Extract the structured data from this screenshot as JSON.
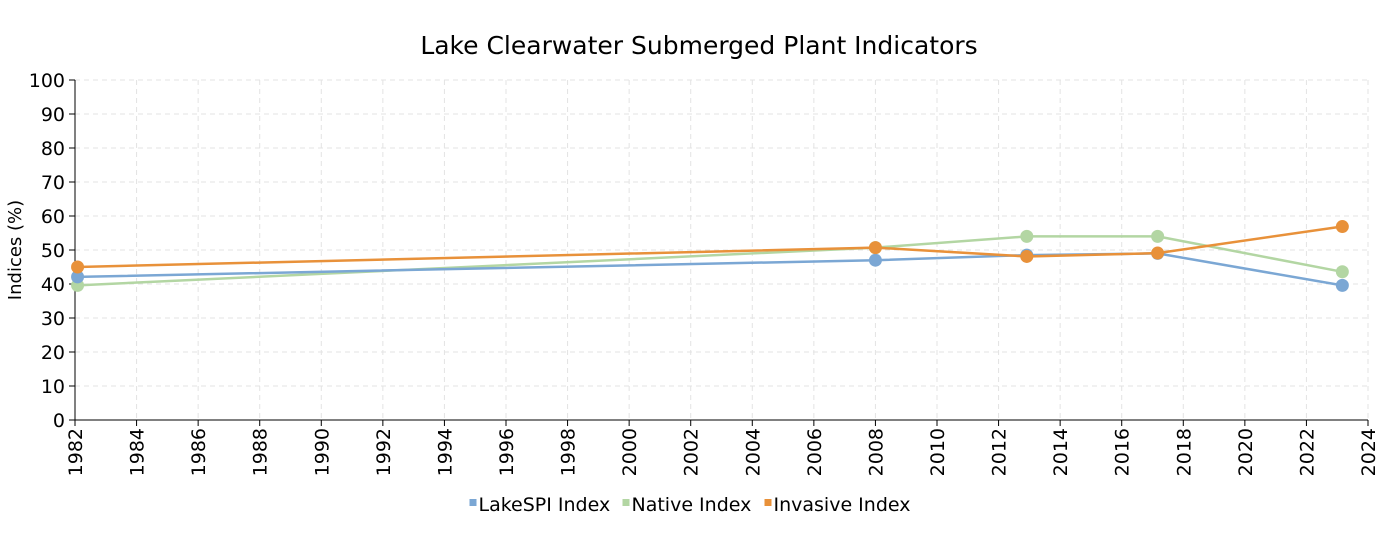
{
  "chart_data": {
    "type": "line",
    "title": "Lake Clearwater Submerged Plant Indicators",
    "xlabel": "",
    "ylabel": "Indices (%)",
    "xlim": [
      1982,
      2024
    ],
    "ylim": [
      0,
      100
    ],
    "x_ticks": [
      1982,
      1984,
      1986,
      1988,
      1990,
      1992,
      1994,
      1996,
      1998,
      2000,
      2002,
      2004,
      2006,
      2008,
      2010,
      2012,
      2014,
      2016,
      2018,
      2020,
      2022,
      2024
    ],
    "y_ticks": [
      0,
      10,
      20,
      30,
      40,
      50,
      60,
      70,
      80,
      90,
      100
    ],
    "grid": true,
    "legend_position": "bottom",
    "series": [
      {
        "name": "LakeSPI Index",
        "color": "#7ba7d4",
        "points": [
          {
            "x": "1982-02",
            "y": 42.1
          },
          {
            "x": "2008-01",
            "y": 47.0
          },
          {
            "x": "2012-12",
            "y": 48.5
          },
          {
            "x": "2017-03",
            "y": 49.0
          },
          {
            "x": "2023-03",
            "y": 39.6
          }
        ]
      },
      {
        "name": "Native Index",
        "color": "#b3d6a3",
        "points": [
          {
            "x": "1982-02",
            "y": 39.6
          },
          {
            "x": "2008-01",
            "y": 50.7
          },
          {
            "x": "2012-12",
            "y": 54.0
          },
          {
            "x": "2017-03",
            "y": 54.0
          },
          {
            "x": "2023-03",
            "y": 43.6
          }
        ]
      },
      {
        "name": "Invasive Index",
        "color": "#e8913a",
        "points": [
          {
            "x": "1982-02",
            "y": 45.0
          },
          {
            "x": "2008-01",
            "y": 50.7
          },
          {
            "x": "2012-12",
            "y": 48.1
          },
          {
            "x": "2017-03",
            "y": 49.1
          },
          {
            "x": "2023-03",
            "y": 56.9
          }
        ]
      }
    ]
  }
}
